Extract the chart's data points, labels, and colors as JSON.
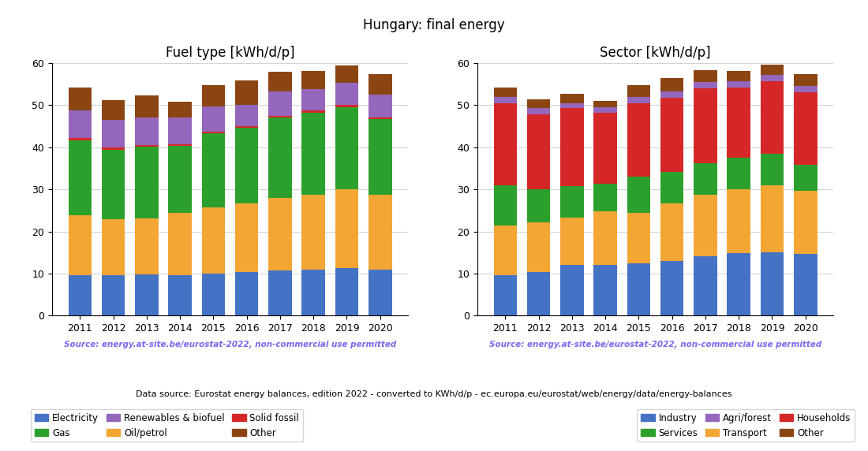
{
  "title": "Hungary: final energy",
  "years": [
    2011,
    2012,
    2013,
    2014,
    2015,
    2016,
    2017,
    2018,
    2019,
    2020
  ],
  "fuel_title": "Fuel type [kWh/d/p]",
  "fuel_labels": [
    "Electricity",
    "Oil/petrol",
    "Gas",
    "Solid fossil",
    "Renewables & biofuel",
    "Other"
  ],
  "fuel_colors": [
    "#4472c4",
    "#f4a634",
    "#2ca02c",
    "#d62728",
    "#9467bd",
    "#8B4513"
  ],
  "fuel_data": {
    "Electricity": [
      9.7,
      9.7,
      9.8,
      9.7,
      10.0,
      10.3,
      10.8,
      11.0,
      11.3,
      11.0
    ],
    "Oil/petrol": [
      14.2,
      13.3,
      13.4,
      14.8,
      15.7,
      16.3,
      17.2,
      17.8,
      18.7,
      17.7
    ],
    "Gas": [
      17.8,
      16.4,
      16.9,
      15.8,
      17.6,
      18.0,
      19.0,
      19.5,
      19.5,
      18.0
    ],
    "Solid fossil": [
      0.6,
      0.5,
      0.5,
      0.5,
      0.5,
      0.5,
      0.5,
      0.5,
      0.5,
      0.4
    ],
    "Renewables & biofuel": [
      6.5,
      6.7,
      6.5,
      6.3,
      6.0,
      5.0,
      5.8,
      5.0,
      5.3,
      5.5
    ],
    "Other": [
      5.5,
      4.7,
      5.2,
      3.8,
      4.9,
      5.8,
      4.7,
      4.3,
      4.2,
      4.7
    ]
  },
  "sector_title": "Sector [kWh/d/p]",
  "sector_labels": [
    "Industry",
    "Transport",
    "Services",
    "Households",
    "Agri/forest",
    "Other"
  ],
  "sector_colors": [
    "#4472c4",
    "#f4a634",
    "#2ca02c",
    "#d62728",
    "#9467bd",
    "#8B4513"
  ],
  "sector_data": {
    "Industry": [
      9.7,
      10.3,
      12.0,
      12.0,
      12.5,
      13.0,
      14.2,
      14.8,
      15.0,
      14.7
    ],
    "Transport": [
      11.8,
      11.8,
      11.3,
      12.8,
      12.0,
      13.7,
      14.6,
      15.2,
      16.0,
      14.9
    ],
    "Services": [
      9.5,
      8.0,
      7.5,
      6.5,
      8.5,
      7.5,
      7.5,
      7.5,
      7.5,
      6.3
    ],
    "Households": [
      19.5,
      17.8,
      18.5,
      17.0,
      17.5,
      17.5,
      17.8,
      16.8,
      17.2,
      17.2
    ],
    "Agri/forest": [
      1.5,
      1.5,
      1.2,
      1.3,
      1.5,
      1.5,
      1.5,
      1.4,
      1.5,
      1.5
    ],
    "Other": [
      2.3,
      2.0,
      2.3,
      1.4,
      2.7,
      3.3,
      2.8,
      2.5,
      2.5,
      2.7
    ]
  },
  "source_text": "Source: energy.at-site.be/eurostat-2022, non-commercial use permitted",
  "source_color": "#7b68ee",
  "footer_text": "Data source: Eurostat energy balances, edition 2022 - converted to KWh/d/p - ec.europa.eu/eurostat/web/energy/data/energy-balances",
  "ylim": [
    0,
    60
  ],
  "yticks": [
    0,
    10,
    20,
    30,
    40,
    50,
    60
  ]
}
